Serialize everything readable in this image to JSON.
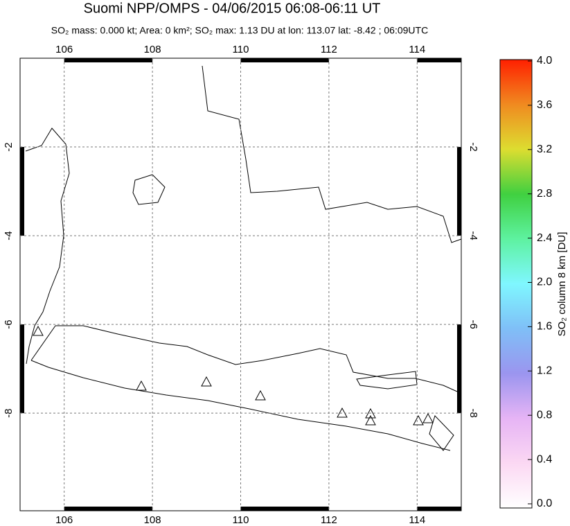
{
  "title": "Suomi NPP/OMPS - 04/06/2015 06:08-06:11 UT",
  "subtitle": "SO₂ mass: 0.000 kt; Area: 0 km²; SO₂ max: 1.13 DU at lon: 113.07 lat: -8.42 ; 06:09UTC",
  "map": {
    "lonlim": [
      105,
      115
    ],
    "latlim": [
      0,
      -10.2
    ],
    "lon_ticks": [
      106,
      108,
      110,
      112,
      114
    ],
    "lat_ticks": [
      -2,
      -4,
      -6,
      -8
    ]
  },
  "colorbar": {
    "label": "SO₂ column 8 km [DU]",
    "lim": [
      0,
      4
    ],
    "ticks": [
      {
        "value": 0,
        "label": "0.0"
      },
      {
        "value": 0.4,
        "label": "0.4"
      },
      {
        "value": 0.8,
        "label": "0.8"
      },
      {
        "value": 1.2,
        "label": "1.2"
      },
      {
        "value": 1.6,
        "label": "1.6"
      },
      {
        "value": 2,
        "label": "2.0"
      },
      {
        "value": 2.4,
        "label": "2.4"
      },
      {
        "value": 2.8,
        "label": "2.8"
      },
      {
        "value": 3.2,
        "label": "3.2"
      },
      {
        "value": 3.6,
        "label": "3.6"
      },
      {
        "value": 4,
        "label": "4.0"
      }
    ]
  }
}
